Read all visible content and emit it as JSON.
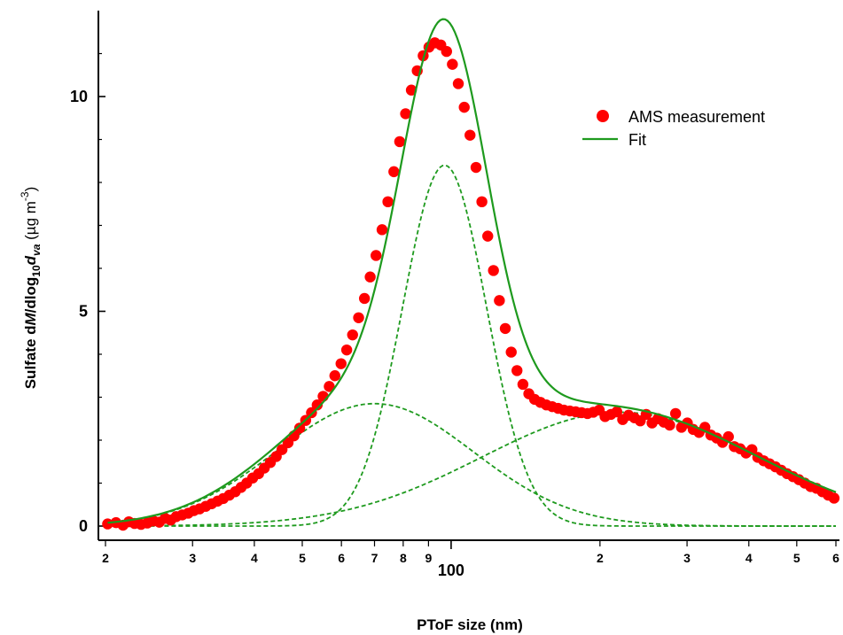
{
  "chart_data": {
    "type": "scatter",
    "title": "",
    "xlabel": "PToF size (nm)",
    "ylabel": {
      "prefix": "Sulfate d",
      "italic_m": "M",
      "mid": "/dlog",
      "sub10": "10",
      "italic_d": "d",
      "sub_va": "va",
      "unit_open": " (µg m",
      "sup_unit": "-3",
      "unit_close": ")"
    },
    "x_scale": "log",
    "xlim": [
      20,
      600
    ],
    "ylim": [
      -0.85,
      11.8
    ],
    "grid": false,
    "legend_position": "top-right",
    "colors": {
      "measurement": "#ff0000",
      "fit": "#1e9a1e",
      "axis": "#000000"
    },
    "y_ticks": [
      {
        "value": 0,
        "label": "0"
      },
      {
        "value": 5,
        "label": "5"
      },
      {
        "value": 10,
        "label": "10"
      }
    ],
    "x_ticks": [
      {
        "value": 20,
        "label": "2",
        "major": false
      },
      {
        "value": 30,
        "label": "3",
        "major": false
      },
      {
        "value": 40,
        "label": "4",
        "major": false
      },
      {
        "value": 50,
        "label": "5",
        "major": false
      },
      {
        "value": 60,
        "label": "6",
        "major": false
      },
      {
        "value": 70,
        "label": "7",
        "major": false
      },
      {
        "value": 80,
        "label": "8",
        "major": false
      },
      {
        "value": 90,
        "label": "9",
        "major": false
      },
      {
        "value": 100,
        "label": "100",
        "major": true
      },
      {
        "value": 200,
        "label": "2",
        "major": false
      },
      {
        "value": 300,
        "label": "3",
        "major": false
      },
      {
        "value": 400,
        "label": "4",
        "major": false
      },
      {
        "value": 500,
        "label": "5",
        "major": false
      },
      {
        "value": 600,
        "label": "6",
        "major": false
      }
    ],
    "series": [
      {
        "name": "AMS measurement",
        "kind": "points",
        "x": [
          20.2,
          21.0,
          21.7,
          22.3,
          22.9,
          23.6,
          24.3,
          25.0,
          25.7,
          26.4,
          27.1,
          27.8,
          28.6,
          29.4,
          30.2,
          31.0,
          31.9,
          32.8,
          33.7,
          34.6,
          35.6,
          36.6,
          37.6,
          38.6,
          39.7,
          40.8,
          41.9,
          43.1,
          44.3,
          45.5,
          46.8,
          48.1,
          49.4,
          50.8,
          52.2,
          53.6,
          55.1,
          56.7,
          58.2,
          59.9,
          61.5,
          63.2,
          65.0,
          66.8,
          68.6,
          70.5,
          72.5,
          74.5,
          76.6,
          78.7,
          80.9,
          83.1,
          85.4,
          87.8,
          90.2,
          92.7,
          95.3,
          97.9,
          100.6,
          103.4,
          106.3,
          109.2,
          112.3,
          115.4,
          118.6,
          121.8,
          125.2,
          128.7,
          132.3,
          135.9,
          139.7,
          143.6,
          147.5,
          151.6,
          155.8,
          160.1,
          164.6,
          169.1,
          173.8,
          178.6,
          183.6,
          188.7,
          193.9,
          199.3,
          204.8,
          210.5,
          216.3,
          222.3,
          228.5,
          234.8,
          241.3,
          248.0,
          254.9,
          262.0,
          269.2,
          276.7,
          284.4,
          292.3,
          300.4,
          308.7,
          317.2,
          326.0,
          335.1,
          344.4,
          353.9,
          363.7,
          373.8,
          384.2,
          394.8,
          405.8,
          417.0,
          428.6,
          440.5,
          452.7,
          465.2,
          478.1,
          491.4,
          505.0,
          519.0,
          533.3,
          548.1,
          563.3,
          578.9,
          594.9
        ],
        "y": [
          0.05,
          0.08,
          0.02,
          0.1,
          0.06,
          0.04,
          0.07,
          0.12,
          0.09,
          0.18,
          0.14,
          0.22,
          0.26,
          0.3,
          0.36,
          0.4,
          0.46,
          0.52,
          0.58,
          0.64,
          0.72,
          0.8,
          0.9,
          1.0,
          1.12,
          1.22,
          1.35,
          1.48,
          1.62,
          1.78,
          1.94,
          2.1,
          2.28,
          2.46,
          2.64,
          2.82,
          3.02,
          3.25,
          3.5,
          3.78,
          4.1,
          4.45,
          4.85,
          5.3,
          5.8,
          6.3,
          6.9,
          7.55,
          8.25,
          8.95,
          9.6,
          10.15,
          10.6,
          10.95,
          11.15,
          11.25,
          11.2,
          11.05,
          10.75,
          10.3,
          9.75,
          9.1,
          8.35,
          7.55,
          6.75,
          5.95,
          5.25,
          4.6,
          4.05,
          3.62,
          3.3,
          3.08,
          2.95,
          2.88,
          2.82,
          2.78,
          2.74,
          2.7,
          2.68,
          2.66,
          2.64,
          2.62,
          2.65,
          2.7,
          2.55,
          2.6,
          2.66,
          2.48,
          2.58,
          2.52,
          2.45,
          2.6,
          2.4,
          2.5,
          2.42,
          2.35,
          2.62,
          2.3,
          2.4,
          2.25,
          2.18,
          2.3,
          2.12,
          2.05,
          1.95,
          2.08,
          1.85,
          1.8,
          1.7,
          1.78,
          1.6,
          1.52,
          1.45,
          1.38,
          1.3,
          1.22,
          1.15,
          1.08,
          1.0,
          0.92,
          0.88,
          0.8,
          0.72,
          0.65
        ]
      },
      {
        "name": "Fit",
        "kind": "line",
        "mode_a": {
          "amp": 2.85,
          "dg": 70,
          "log_sigma": 0.2
        },
        "mode_b": {
          "amp": 8.4,
          "dg": 97,
          "log_sigma": 0.085
        },
        "mode_c": {
          "amp": 2.65,
          "dg": 220,
          "log_sigma": 0.28
        }
      }
    ],
    "mode_components": [
      "mode_a",
      "mode_b",
      "mode_c"
    ]
  }
}
